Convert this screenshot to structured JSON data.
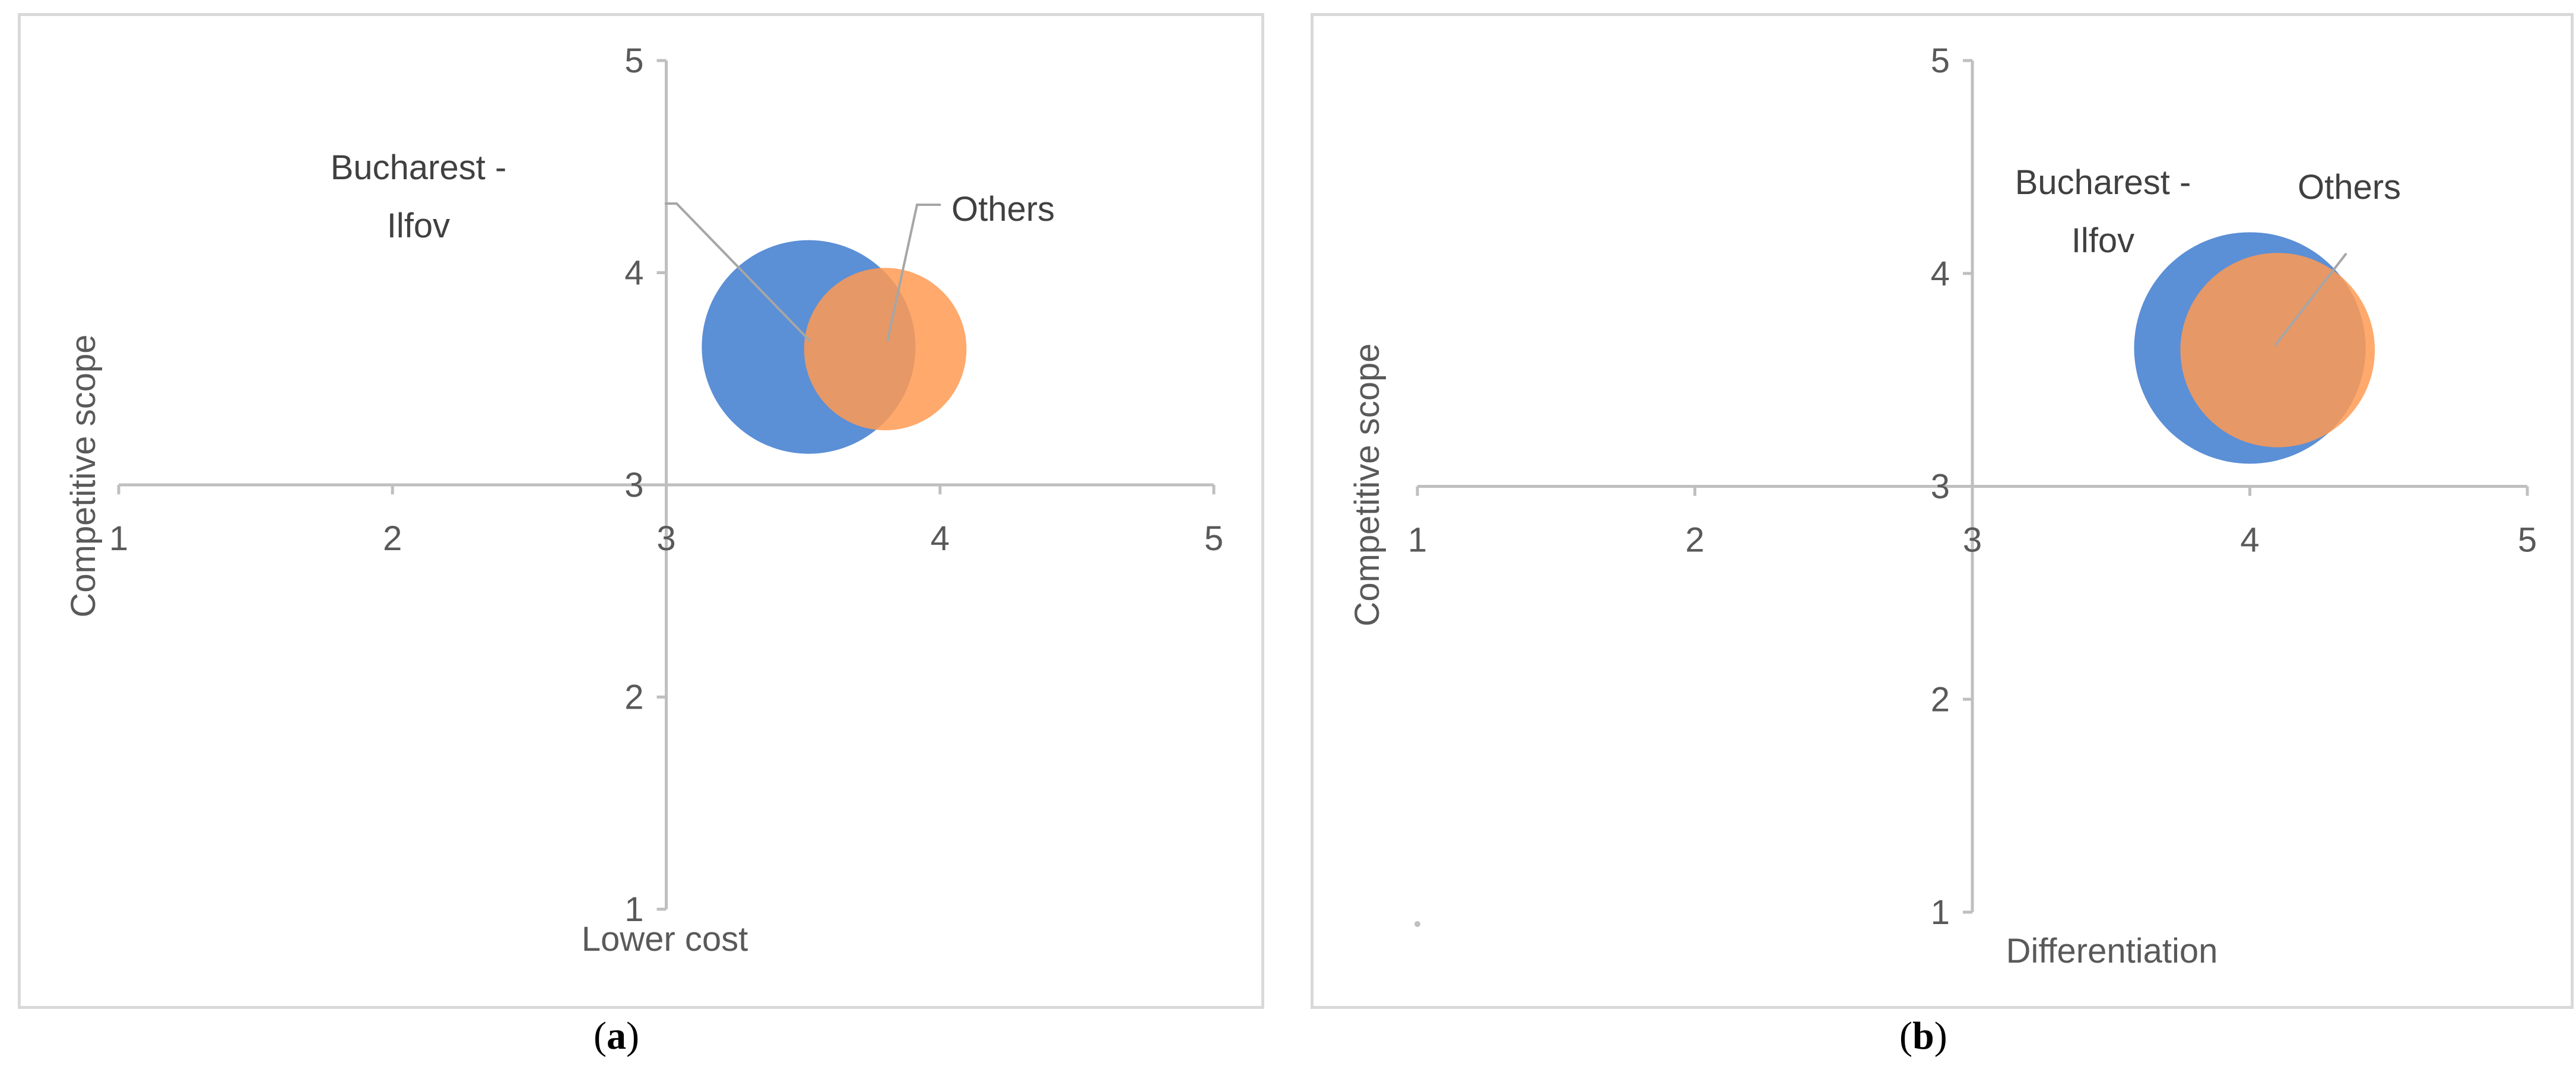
{
  "chart_data": [
    {
      "type": "bubble",
      "panel_label": "a",
      "xlabel": "Lower cost",
      "ylabel": "Competitive scope",
      "xlim": [
        1,
        5
      ],
      "ylim": [
        1,
        5
      ],
      "axis_cross": [
        3,
        3
      ],
      "x_ticks": [
        "1",
        "2",
        "3",
        "4",
        "5"
      ],
      "y_ticks": [
        "1",
        "2",
        "3",
        "4",
        "5"
      ],
      "grid": false,
      "series": [
        {
          "name": "Bucharest - Ilfov",
          "label_lines": [
            "Bucharest -",
            "Ilfov"
          ],
          "x": 3.52,
          "y": 3.65,
          "size": 1.0,
          "color": "#5b8fd6"
        },
        {
          "name": "Others",
          "label_lines": [
            "Others"
          ],
          "x": 3.8,
          "y": 3.64,
          "size": 0.76,
          "color": "#ff9a52"
        }
      ]
    },
    {
      "type": "bubble",
      "panel_label": "b",
      "xlabel": "Differentiation",
      "ylabel": "Competitive scope",
      "xlim": [
        1,
        5
      ],
      "ylim": [
        1,
        5
      ],
      "axis_cross": [
        3,
        3
      ],
      "x_ticks": [
        "1",
        "2",
        "3",
        "4",
        "5"
      ],
      "y_ticks": [
        "1",
        "2",
        "3",
        "4",
        "5"
      ],
      "grid": false,
      "series": [
        {
          "name": "Bucharest - Ilfov",
          "label_lines": [
            "Bucharest -",
            "Ilfov"
          ],
          "x": 4.0,
          "y": 3.65,
          "size": 1.0,
          "color": "#5b8fd6"
        },
        {
          "name": "Others",
          "label_lines": [
            "Others"
          ],
          "x": 4.1,
          "y": 3.64,
          "size": 0.84,
          "color": "#ff9a52"
        }
      ]
    }
  ],
  "captions": [
    "(a)",
    "(b)"
  ]
}
